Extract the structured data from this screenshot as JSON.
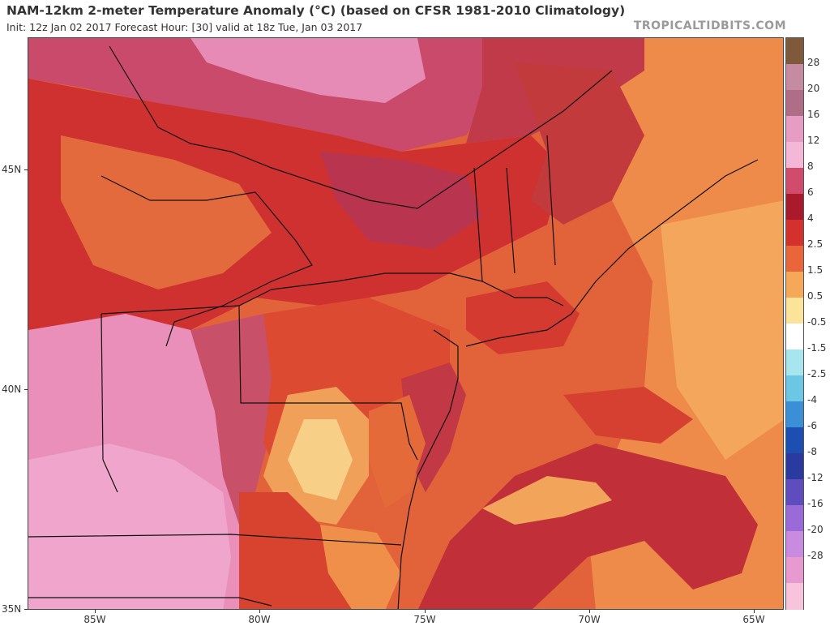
{
  "header": {
    "title": "NAM-12km 2-meter Temperature Anomaly (°C) (based on CFSR 1981-2010 Climatology)",
    "subtitle": "Init: 12z Jan 02 2017   Forecast Hour: [30]   valid at 18z Tue, Jan 03 2017",
    "brand": "TROPICALTIDBITS.COM"
  },
  "map": {
    "lat_labels": [
      "45N",
      "40N",
      "35N"
    ],
    "lon_labels": [
      "85W",
      "80W",
      "75W",
      "70W",
      "65W"
    ],
    "region": "Northeastern United States and Eastern Canada",
    "ocean_anomaly_color": "#e06a34",
    "land_colors": {
      "warm_pink": "#e58ab4",
      "dark_red": "#b3283a",
      "red": "#d0342e",
      "orange": "#e5673a",
      "light_orange": "#f3a25a",
      "pale_yellow": "#f8dc8c"
    }
  },
  "colorbar": {
    "labels": [
      "28",
      "20",
      "16",
      "12",
      "8",
      "6",
      "4",
      "2.5",
      "1.5",
      "0.5",
      "-0.5",
      "-1.5",
      "-2.5",
      "-4",
      "-6",
      "-8",
      "-12",
      "-16",
      "-20",
      "-28"
    ],
    "colors": [
      "#7f5a3a",
      "#c58ba0",
      "#b06d88",
      "#e79cc6",
      "#f3b8d8",
      "#d04b6c",
      "#a81a2c",
      "#d4302c",
      "#e9653a",
      "#f5a858",
      "#fbe39a",
      "#ffffff",
      "#a8e6ef",
      "#6cc7e4",
      "#3a8fd6",
      "#1d4fb3",
      "#2a3aa0",
      "#5f4dc0",
      "#9a6ad8",
      "#c98be0",
      "#e89ad0",
      "#f7c4dc"
    ]
  }
}
